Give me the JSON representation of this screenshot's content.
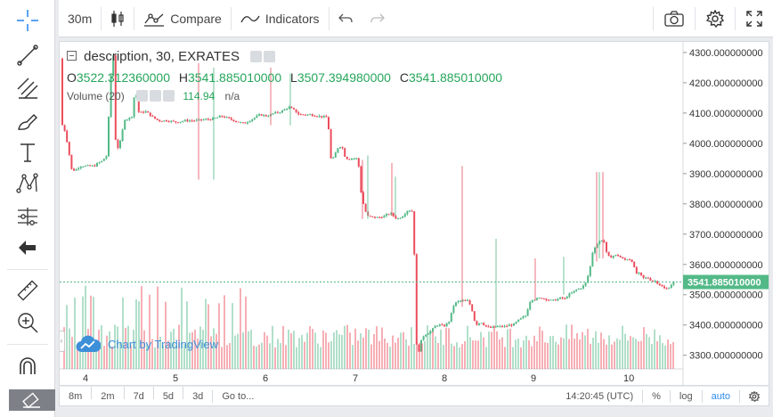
{
  "toolbar": {
    "interval": "30m",
    "compare_label": "Compare",
    "indicators_label": "Indicators"
  },
  "legend": {
    "symbol": "description, 30, EXRATES",
    "o_label": "O",
    "o_value": "3522.312360000",
    "h_label": "H",
    "h_value": "3541.885010000",
    "l_label": "L",
    "l_value": "3507.394980000",
    "c_label": "C",
    "c_value": "3541.885010000",
    "volume_label": "Volume (20)",
    "volume_value": "114.94",
    "volume_na": "n/a"
  },
  "watermark": "Chart by TradingView",
  "bottombar": {
    "ranges": [
      "8m",
      "2m",
      "7d",
      "5d",
      "3d"
    ],
    "goto_label": "Go to...",
    "time": "14:20:45 (UTC)",
    "percent": "%",
    "log": "log",
    "auto": "auto"
  },
  "colors": {
    "up": "#53b987",
    "down": "#eb4d5c",
    "accent": "#2f8cf0"
  },
  "chart_data": {
    "type": "candlestick",
    "last_price_label": "3541.885010000",
    "y_axis_labels": [
      "4300.000000000",
      "4200.000000000",
      "4100.000000000",
      "4000.000000000",
      "3900.000000000",
      "3800.000000000",
      "3700.000000000",
      "3600.000000000",
      "3500.000000000",
      "3400.000000000",
      "3300.000000000"
    ],
    "x_axis_labels": [
      "4",
      "5",
      "6",
      "7",
      "8",
      "9",
      "10"
    ],
    "ylim": [
      3255,
      4335
    ],
    "last_price": 3541.885,
    "price_path": [
      [
        0,
        4280
      ],
      [
        2,
        4060
      ],
      [
        5,
        4040
      ],
      [
        9,
        3980
      ],
      [
        12,
        3915
      ],
      [
        16,
        3910
      ],
      [
        22,
        3925
      ],
      [
        30,
        3925
      ],
      [
        38,
        3925
      ],
      [
        42,
        3935
      ],
      [
        46,
        3940
      ],
      [
        49,
        3950
      ],
      [
        52,
        3960
      ],
      [
        56,
        4210
      ],
      [
        60,
        4310
      ],
      [
        62,
        3980
      ],
      [
        66,
        3990
      ],
      [
        70,
        4050
      ],
      [
        72,
        4080
      ],
      [
        76,
        4080
      ],
      [
        80,
        4090
      ],
      [
        84,
        4185
      ],
      [
        88,
        4100
      ],
      [
        96,
        4105
      ],
      [
        104,
        4085
      ],
      [
        110,
        4075
      ],
      [
        120,
        4075
      ],
      [
        130,
        4070
      ],
      [
        140,
        4075
      ],
      [
        150,
        4075
      ],
      [
        160,
        4078
      ],
      [
        170,
        4080
      ],
      [
        176,
        4085
      ],
      [
        180,
        4090
      ],
      [
        186,
        4085
      ],
      [
        192,
        4078
      ],
      [
        200,
        4070
      ],
      [
        206,
        4065
      ],
      [
        212,
        4075
      ],
      [
        218,
        4085
      ],
      [
        224,
        4095
      ],
      [
        232,
        4090
      ],
      [
        240,
        4100
      ],
      [
        248,
        4105
      ],
      [
        256,
        4120
      ],
      [
        262,
        4110
      ],
      [
        268,
        4095
      ],
      [
        280,
        4095
      ],
      [
        290,
        4090
      ],
      [
        300,
        4085
      ],
      [
        304,
        3935
      ],
      [
        312,
        3990
      ],
      [
        316,
        3990
      ],
      [
        320,
        3950
      ],
      [
        326,
        3950
      ],
      [
        334,
        3950
      ],
      [
        338,
        3820
      ],
      [
        344,
        3760
      ],
      [
        352,
        3755
      ],
      [
        358,
        3755
      ],
      [
        364,
        3760
      ],
      [
        370,
        3770
      ],
      [
        374,
        3760
      ],
      [
        378,
        3750
      ],
      [
        384,
        3760
      ],
      [
        390,
        3780
      ],
      [
        396,
        3775
      ],
      [
        400,
        3310
      ],
      [
        402,
        3310
      ],
      [
        406,
        3360
      ],
      [
        410,
        3370
      ],
      [
        416,
        3380
      ],
      [
        422,
        3400
      ],
      [
        426,
        3400
      ],
      [
        430,
        3395
      ],
      [
        436,
        3410
      ],
      [
        442,
        3470
      ],
      [
        448,
        3480
      ],
      [
        452,
        3480
      ],
      [
        458,
        3480
      ],
      [
        462,
        3450
      ],
      [
        466,
        3400
      ],
      [
        472,
        3410
      ],
      [
        478,
        3395
      ],
      [
        482,
        3390
      ],
      [
        490,
        3395
      ],
      [
        496,
        3395
      ],
      [
        500,
        3395
      ],
      [
        504,
        3400
      ],
      [
        508,
        3400
      ],
      [
        512,
        3410
      ],
      [
        516,
        3420
      ],
      [
        522,
        3430
      ],
      [
        528,
        3485
      ],
      [
        534,
        3485
      ],
      [
        540,
        3490
      ],
      [
        546,
        3485
      ],
      [
        552,
        3480
      ],
      [
        558,
        3485
      ],
      [
        562,
        3490
      ],
      [
        566,
        3485
      ],
      [
        570,
        3500
      ],
      [
        574,
        3505
      ],
      [
        578,
        3515
      ],
      [
        582,
        3520
      ],
      [
        586,
        3525
      ],
      [
        590,
        3540
      ],
      [
        594,
        3580
      ],
      [
        598,
        3650
      ],
      [
        602,
        3665
      ],
      [
        606,
        3680
      ],
      [
        610,
        3680
      ],
      [
        614,
        3625
      ],
      [
        618,
        3625
      ],
      [
        622,
        3630
      ],
      [
        626,
        3630
      ],
      [
        630,
        3620
      ],
      [
        634,
        3615
      ],
      [
        638,
        3620
      ],
      [
        642,
        3610
      ],
      [
        646,
        3570
      ],
      [
        650,
        3570
      ],
      [
        654,
        3555
      ],
      [
        660,
        3555
      ],
      [
        664,
        3545
      ],
      [
        668,
        3545
      ],
      [
        672,
        3535
      ],
      [
        678,
        3520
      ],
      [
        682,
        3520
      ],
      [
        686,
        3535
      ],
      [
        688,
        3541
      ]
    ]
  }
}
